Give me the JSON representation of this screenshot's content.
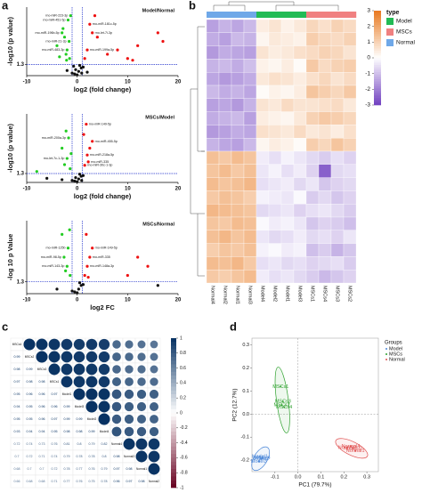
{
  "panel_labels": [
    "a",
    "b",
    "c",
    "d"
  ],
  "chart_data": [
    {
      "type": "volcano",
      "title": "Model/Normal",
      "xlabel": "log2 (fold change)",
      "ylabel": "-log10 (p value)",
      "xlim": [
        -10,
        20
      ],
      "xticks": [
        -10,
        0,
        10,
        20
      ],
      "ylim": [
        0,
        8
      ],
      "yticks": [
        1.3
      ],
      "hline": 1.3,
      "vlines": [
        -1,
        1
      ],
      "series": [
        {
          "color": "#22cc22",
          "x": [
            -1.5,
            -2,
            -2.5,
            -3,
            -1.8,
            -2.2,
            -4,
            -1.3,
            -2.8,
            -1.6,
            -3.5,
            -2.1
          ],
          "values": [
            2,
            3,
            4.5,
            5,
            6.5,
            2.5,
            3.5,
            7,
            5.5,
            4,
            2.2,
            1.8
          ],
          "labels": [
            null,
            "rno-miR-483-3p",
            null,
            "rno-miR-196b-5p",
            "rno-miR-451-5p",
            null,
            null,
            "rno-miR-223-3p",
            null,
            "rno-miR-21-3p",
            null,
            null
          ]
        },
        {
          "color": "#111111",
          "x": [
            -0.5,
            0.3,
            0.8,
            -1,
            1.2,
            0,
            0.5,
            -0.3,
            2,
            -2,
            0.9,
            -0.7
          ],
          "values": [
            0.2,
            0.5,
            0.9,
            0.3,
            1,
            0.1,
            1.2,
            0.7,
            0.4,
            0.6,
            0.3,
            1.1
          ],
          "labels": [
            null,
            null,
            null,
            null,
            null,
            null,
            null,
            null,
            null,
            null,
            null,
            null
          ]
        },
        {
          "color": "#ee1111",
          "x": [
            1.5,
            2,
            3,
            2.5,
            4,
            6,
            8,
            10,
            12,
            16,
            17,
            11,
            3.5
          ],
          "values": [
            2,
            3,
            5,
            6,
            4.5,
            2.5,
            3,
            2,
            3.5,
            5,
            4,
            1.8,
            7
          ],
          "labels": [
            null,
            "rno-miR-199a-5p",
            "rno-let-7i-3p",
            "rno-miR-181c-5p",
            null,
            null,
            null,
            null,
            null,
            null,
            null,
            null,
            null
          ]
        }
      ]
    },
    {
      "type": "volcano",
      "title": "MSCs/Model",
      "xlabel": "log2 (fold change)",
      "ylabel": "-log10 (p value)",
      "xlim": [
        -10,
        20
      ],
      "xticks": [
        -10,
        0,
        10,
        20
      ],
      "ylim": [
        0,
        10
      ],
      "yticks": [
        1.3
      ],
      "hline": 1.3,
      "vlines": [
        -1,
        1
      ],
      "series": [
        {
          "color": "#22cc22",
          "x": [
            -1.4,
            -2,
            -3,
            -1.7,
            -2.5,
            -8,
            -1.2,
            -2.2
          ],
          "values": [
            2,
            3.5,
            5,
            6.5,
            2.6,
            1.6,
            4.2,
            7.5
          ],
          "labels": [
            null,
            "rno-let-7c-1-3p",
            null,
            "rno-miR-200a-3p",
            null,
            null,
            null,
            null
          ]
        },
        {
          "color": "#111111",
          "x": [
            -0.5,
            0.3,
            0.8,
            -1,
            1.2,
            0,
            0.5,
            -0.3,
            -3,
            -6,
            0.9
          ],
          "values": [
            0.2,
            0.5,
            0.9,
            0.3,
            1,
            0.1,
            1.2,
            0.7,
            0.4,
            0.6,
            0.3
          ],
          "labels": [
            null,
            null,
            null,
            null,
            null,
            null,
            null,
            null,
            null,
            null,
            null
          ]
        },
        {
          "color": "#ee1111",
          "x": [
            1.5,
            2,
            2.5,
            3,
            1.8,
            2.2,
            1.3
          ],
          "values": [
            2.5,
            4,
            5,
            6,
            8.5,
            3,
            7
          ],
          "labels": [
            "rno-miR-30c-1-3p",
            "rno-miR-218a-5p",
            null,
            "rno-miR-455-5p",
            "rno-miR-149-5p",
            "rno-miR-335",
            null
          ]
        }
      ]
    },
    {
      "type": "volcano",
      "title": "MSCs/Normal",
      "xlabel": "log2 FC",
      "ylabel": "-log 10 p Value",
      "xlim": [
        -10,
        20
      ],
      "xticks": [
        -10,
        0,
        10,
        20
      ],
      "ylim": [
        0,
        8
      ],
      "yticks": [
        1.3
      ],
      "hline": 1.3,
      "vlines": [
        -1,
        1
      ],
      "series": [
        {
          "color": "#22cc22",
          "x": [
            -1.4,
            -2,
            -2.6,
            -1.8,
            -3,
            -1.5,
            -2.3
          ],
          "values": [
            2,
            3,
            4,
            5,
            6.5,
            7,
            2.5
          ],
          "labels": [
            null,
            "rno-miR-143-3p",
            "rno-miR-98-5p",
            "rno-miR-125b",
            null,
            null,
            null
          ]
        },
        {
          "color": "#111111",
          "x": [
            -0.5,
            0.3,
            0.8,
            -1,
            1.2,
            0,
            0.5,
            16,
            -4
          ],
          "values": [
            0.2,
            0.5,
            0.9,
            0.3,
            1,
            0.1,
            1.2,
            0.9,
            0.5
          ],
          "labels": [
            null,
            null,
            null,
            null,
            null,
            null,
            null,
            null,
            null
          ]
        },
        {
          "color": "#ee1111",
          "x": [
            1.5,
            2,
            2.5,
            3,
            12,
            14,
            10,
            1.8,
            2.2
          ],
          "values": [
            2,
            3,
            4,
            5,
            4,
            3,
            2,
            6.5,
            1.8
          ],
          "labels": [
            null,
            "rno-miR-148a-3p",
            "rno-miR-335",
            "rno-miR-149-5p",
            null,
            null,
            null,
            null,
            null
          ]
        }
      ]
    },
    {
      "type": "heatmap",
      "legend_title": "type",
      "groups": [
        {
          "name": "Model",
          "color": "#22bb55"
        },
        {
          "name": "MSCs",
          "color": "#f08080"
        },
        {
          "name": "Normal",
          "color": "#6fa8e8"
        }
      ],
      "columns": [
        "Normal4",
        "Normal2",
        "Normal1",
        "Normal3",
        "Model4",
        "Model2",
        "Model1",
        "Model3",
        "MSCs1",
        "MSCs4",
        "MSCs3",
        "MSCs2"
      ],
      "zlim": [
        -3,
        3
      ],
      "zticks": [
        3,
        2,
        1,
        0,
        -1,
        -2,
        -3
      ],
      "values": [
        [
          -1.5,
          -1.2,
          -1.4,
          -1.1,
          0.4,
          0.6,
          0.3,
          0.5,
          0.9,
          0.7,
          1.0,
          0.8
        ],
        [
          -1.3,
          -1.5,
          -1.1,
          -1.2,
          0.2,
          0.5,
          0.4,
          0.3,
          1.1,
          0.9,
          0.8,
          1.0
        ],
        [
          -1.6,
          -1.3,
          -1.4,
          -1.5,
          0.6,
          0.4,
          0.5,
          0.7,
          0.8,
          1.0,
          0.9,
          0.6
        ],
        [
          -1.2,
          -1.1,
          -1.3,
          -1.0,
          0.3,
          0.2,
          0.4,
          0.1,
          1.2,
          0.8,
          1.0,
          1.1
        ],
        [
          -1.4,
          -1.6,
          -1.5,
          -1.3,
          0.5,
          0.7,
          0.6,
          0.4,
          0.7,
          0.9,
          0.6,
          0.8
        ],
        [
          -1.1,
          -1.3,
          -1.2,
          -1.4,
          0.1,
          0.3,
          0.2,
          0.4,
          1.3,
          1.1,
          0.9,
          1.2
        ],
        [
          -1.5,
          -1.4,
          -1.6,
          -1.2,
          0.6,
          0.5,
          0.8,
          0.6,
          0.6,
          0.7,
          0.8,
          0.5
        ],
        [
          -1.3,
          -1.2,
          -1.1,
          -1.5,
          0.4,
          0.3,
          0.2,
          0.5,
          1.0,
          1.2,
          1.1,
          0.9
        ],
        [
          -1.6,
          -1.5,
          -1.3,
          -1.4,
          0.7,
          0.6,
          0.5,
          0.8,
          0.5,
          0.6,
          0.4,
          0.7
        ],
        [
          -1.2,
          -1.4,
          -1.5,
          -1.1,
          0.2,
          0.4,
          0.3,
          0.1,
          1.1,
          0.9,
          1.3,
          1.0
        ],
        [
          1.4,
          1.2,
          1.5,
          1.3,
          -0.3,
          -0.5,
          -0.2,
          -0.4,
          -0.6,
          -0.8,
          -0.5,
          -0.7
        ],
        [
          1.3,
          1.5,
          1.2,
          1.4,
          -0.4,
          -0.2,
          -0.5,
          -0.3,
          -0.7,
          -2.5,
          -0.6,
          -0.5
        ],
        [
          1.5,
          1.3,
          1.4,
          1.6,
          -0.5,
          -0.4,
          -0.3,
          -0.6,
          -0.4,
          -0.9,
          -0.7,
          -0.6
        ],
        [
          1.2,
          1.4,
          1.3,
          1.1,
          -0.2,
          -0.3,
          -0.4,
          -0.1,
          -0.8,
          -0.6,
          -0.9,
          -0.7
        ],
        [
          1.6,
          1.5,
          1.4,
          1.3,
          -0.6,
          -0.5,
          -0.4,
          -0.7,
          -0.5,
          -0.4,
          -0.6,
          -0.8
        ],
        [
          1.3,
          1.2,
          1.5,
          1.4,
          -0.1,
          -0.3,
          -0.2,
          -0.4,
          -0.9,
          -0.7,
          -0.8,
          -1.0
        ],
        [
          1.4,
          1.6,
          1.3,
          1.5,
          -0.4,
          -0.6,
          -0.5,
          -0.3,
          -0.6,
          -0.5,
          -0.7,
          -0.4
        ],
        [
          1.1,
          1.3,
          1.2,
          1.4,
          -0.2,
          -0.1,
          -0.3,
          -0.2,
          -1.0,
          -0.8,
          -1.2,
          -0.9
        ],
        [
          1.5,
          1.4,
          1.6,
          1.2,
          -0.5,
          -0.4,
          -0.6,
          -0.5,
          -0.7,
          -0.6,
          -0.5,
          -0.8
        ],
        [
          1.2,
          1.1,
          1.3,
          1.5,
          -0.3,
          -0.5,
          -0.4,
          -0.6,
          -0.8,
          -1.1,
          -0.9,
          -0.7
        ]
      ]
    },
    {
      "type": "correlation",
      "labels": [
        "MSCs4",
        "MSCs2",
        "MSCs3",
        "MSCs1",
        "Model1",
        "Model3",
        "Model2",
        "Model4",
        "Normal4",
        "Normal3",
        "Normal1",
        "Normal2"
      ],
      "zlim": [
        -1,
        1
      ],
      "zticks": [
        1,
        0.8,
        0.6,
        0.4,
        0.2,
        0,
        -0.2,
        -0.4,
        -0.6,
        -0.8,
        -1
      ],
      "values": [
        [],
        [
          0.99
        ],
        [
          0.98,
          0.99
        ],
        [
          0.97,
          0.98,
          0.98
        ],
        [
          0.95,
          0.96,
          0.96,
          0.97
        ],
        [
          0.94,
          0.95,
          0.96,
          0.96,
          0.99
        ],
        [
          0.95,
          0.95,
          0.96,
          0.97,
          0.99,
          0.99
        ],
        [
          0.93,
          0.94,
          0.94,
          0.95,
          0.98,
          0.98,
          0.99
        ],
        [
          0.72,
          0.74,
          0.73,
          0.76,
          0.81,
          0.8,
          0.79,
          0.82
        ],
        [
          0.7,
          0.72,
          0.71,
          0.74,
          0.79,
          0.78,
          0.78,
          0.8,
          0.98
        ],
        [
          0.68,
          0.7,
          0.7,
          0.72,
          0.78,
          0.77,
          0.76,
          0.79,
          0.97,
          0.98
        ],
        [
          0.66,
          0.68,
          0.68,
          0.71,
          0.77,
          0.76,
          0.75,
          0.78,
          0.96,
          0.97,
          0.98
        ]
      ]
    },
    {
      "type": "pca",
      "xlabel": "PC1 (79.7%)",
      "ylabel": "PC2 (12.7%)",
      "legend_title": "Groups",
      "zero_lines": true,
      "xlim": [
        -0.2,
        0.35
      ],
      "xticks": [
        -0.1,
        {
          "value": 0,
          "label": "0.0"
        },
        0.1,
        0.2,
        0.3
      ],
      "ylim": [
        -0.25,
        0.33
      ],
      "yticks": [
        -0.2,
        -0.1,
        {
          "value": 0,
          "label": "0.0"
        },
        0.1,
        0.2,
        0.3
      ],
      "series": [
        {
          "name": "Model",
          "color": "#4a86d8",
          "x": [
            -0.165,
            -0.16,
            -0.17,
            -0.155
          ],
          "values": [
            -0.185,
            -0.195,
            -0.205,
            -0.19
          ],
          "labels": [
            "Model1",
            "Model2",
            "Model3",
            "Model4"
          ]
        },
        {
          "name": "MSCs",
          "color": "#2ca02c",
          "x": [
            -0.075,
            -0.07,
            -0.065,
            -0.06
          ],
          "values": [
            0.12,
            0.04,
            0.055,
            0.03
          ],
          "labels": [
            "MSCs1",
            "MSCs2",
            "MSCs3",
            "MSCs4"
          ]
        },
        {
          "name": "Normal",
          "color": "#e05050",
          "x": [
            0.25,
            0.24,
            0.215,
            0.23
          ],
          "values": [
            -0.16,
            -0.15,
            -0.145,
            -0.14
          ],
          "labels": [
            "Normal1",
            "Normal2",
            "Normal3",
            "Normal4"
          ]
        }
      ]
    }
  ]
}
